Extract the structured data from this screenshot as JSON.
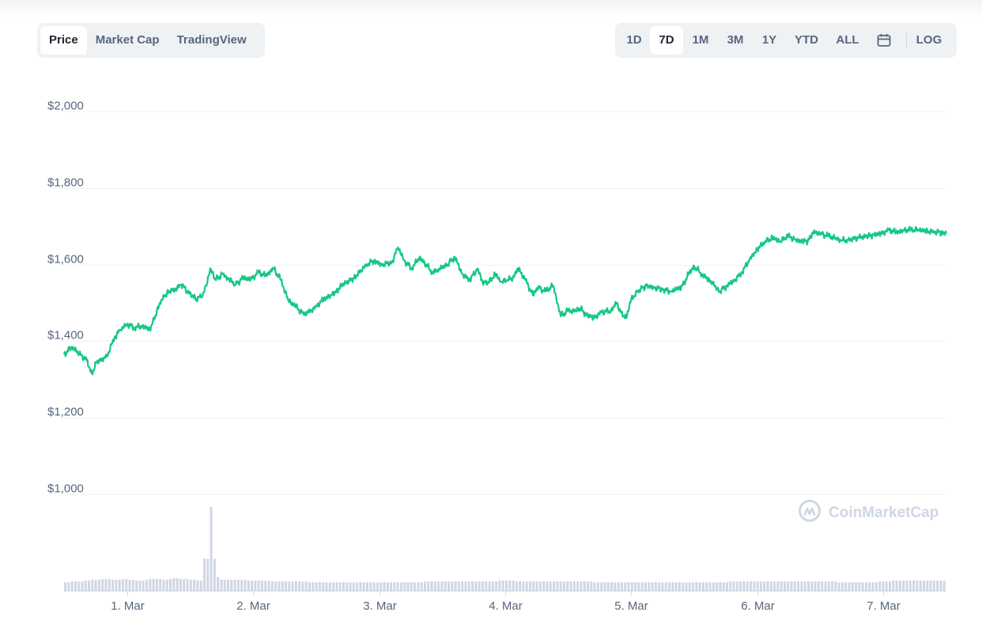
{
  "toolbar": {
    "left_tabs": [
      {
        "label": "Price",
        "active": true
      },
      {
        "label": "Market Cap",
        "active": false
      },
      {
        "label": "TradingView",
        "active": false
      }
    ],
    "right_tabs": [
      {
        "label": "1D",
        "active": false
      },
      {
        "label": "7D",
        "active": true
      },
      {
        "label": "1M",
        "active": false
      },
      {
        "label": "3M",
        "active": false
      },
      {
        "label": "1Y",
        "active": false
      },
      {
        "label": "YTD",
        "active": false
      },
      {
        "label": "ALL",
        "active": false
      }
    ],
    "calendar_icon": "calendar-icon",
    "log_label": "LOG"
  },
  "watermark": {
    "text": "CoinMarketCap",
    "icon": "coinmarketcap-logo-icon"
  },
  "colors": {
    "line": "#16c784",
    "grid": "#eff2f5",
    "volume": "#cfd6e4",
    "text": "#58667e"
  },
  "chart_data": {
    "type": "line",
    "y_ticks": [
      "$2,000",
      "$1,800",
      "$1,600",
      "$1,400",
      "$1,200",
      "$1,000"
    ],
    "y_tick_values": [
      2000,
      1800,
      1600,
      1400,
      1200,
      1000
    ],
    "ylim": [
      1000,
      2000
    ],
    "x_ticks": [
      "1. Mar",
      "2. Mar",
      "3. Mar",
      "4. Mar",
      "5. Mar",
      "6. Mar",
      "7. Mar"
    ],
    "x_tick_values": [
      0.5,
      1.5,
      2.5,
      3.5,
      4.5,
      5.5,
      6.5
    ],
    "xlim": [
      0,
      7
    ],
    "grid": true,
    "series": [
      {
        "x": [
          0,
          0.06,
          0.18,
          0.22,
          0.26,
          0.34,
          0.4,
          0.45,
          0.5,
          0.56,
          0.62,
          0.68,
          0.72,
          0.76,
          0.8,
          0.84,
          0.88,
          0.93,
          0.98,
          1.05,
          1.1,
          1.13,
          1.16,
          1.2,
          1.26,
          1.31,
          1.36,
          1.42,
          1.48,
          1.54,
          1.6,
          1.66,
          1.72,
          1.78,
          1.84,
          1.9,
          1.94,
          2.0,
          2.06,
          2.12,
          2.16,
          2.2,
          2.3,
          2.4,
          2.46,
          2.52,
          2.6,
          2.65,
          2.7,
          2.76,
          2.82,
          2.86,
          2.92,
          2.96,
          3.04,
          3.1,
          3.16,
          3.22,
          3.28,
          3.32,
          3.36,
          3.42,
          3.47,
          3.52,
          3.56,
          3.6,
          3.66,
          3.72,
          3.76,
          3.82,
          3.88,
          3.94,
          4.0,
          4.06,
          4.1,
          4.14,
          4.2,
          4.26,
          4.34,
          4.38,
          4.42,
          4.46,
          4.5,
          4.55,
          4.62,
          4.68,
          4.75,
          4.82,
          4.88,
          4.92,
          4.96,
          5.0,
          5.06,
          5.12,
          5.2,
          5.26,
          5.32,
          5.38,
          5.44,
          5.5,
          5.56,
          5.62,
          5.68,
          5.74,
          5.8,
          5.86,
          5.9,
          5.94,
          6.0,
          6.06,
          6.12,
          6.17,
          6.22,
          6.3,
          6.38,
          6.42,
          6.48,
          6.54,
          6.6,
          6.66,
          6.72,
          6.78,
          6.84,
          6.9,
          6.96,
          7.0
        ],
        "values": [
          1365,
          1385,
          1350,
          1315,
          1345,
          1360,
          1410,
          1430,
          1445,
          1435,
          1440,
          1432,
          1460,
          1500,
          1520,
          1530,
          1535,
          1548,
          1530,
          1510,
          1520,
          1545,
          1590,
          1560,
          1575,
          1560,
          1548,
          1565,
          1560,
          1580,
          1570,
          1590,
          1560,
          1505,
          1490,
          1470,
          1475,
          1490,
          1510,
          1520,
          1530,
          1545,
          1565,
          1600,
          1610,
          1600,
          1605,
          1645,
          1610,
          1590,
          1620,
          1605,
          1580,
          1585,
          1600,
          1620,
          1575,
          1560,
          1590,
          1555,
          1550,
          1575,
          1555,
          1560,
          1565,
          1590,
          1560,
          1520,
          1540,
          1530,
          1545,
          1465,
          1480,
          1478,
          1485,
          1470,
          1460,
          1475,
          1480,
          1500,
          1475,
          1460,
          1510,
          1530,
          1545,
          1540,
          1535,
          1530,
          1540,
          1550,
          1580,
          1595,
          1575,
          1560,
          1530,
          1545,
          1560,
          1580,
          1615,
          1640,
          1660,
          1670,
          1660,
          1675,
          1665,
          1660,
          1660,
          1685,
          1680,
          1675,
          1668,
          1662,
          1665,
          1670,
          1675,
          1678,
          1680,
          1690,
          1685,
          1688,
          1692,
          1690,
          1688,
          1685,
          1684,
          1682
        ]
      }
    ],
    "volume_note": "relative volume bars",
    "volume": [
      0.1,
      0.1,
      0.11,
      0.11,
      0.11,
      0.11,
      0.12,
      0.12,
      0.13,
      0.13,
      0.13,
      0.14,
      0.14,
      0.14,
      0.13,
      0.13,
      0.13,
      0.14,
      0.14,
      0.13,
      0.13,
      0.12,
      0.12,
      0.12,
      0.13,
      0.14,
      0.14,
      0.14,
      0.14,
      0.13,
      0.13,
      0.14,
      0.15,
      0.15,
      0.14,
      0.14,
      0.14,
      0.13,
      0.13,
      0.12,
      0.12,
      0.38,
      0.38,
      1.0,
      0.38,
      0.16,
      0.13,
      0.13,
      0.13,
      0.13,
      0.13,
      0.13,
      0.13,
      0.13,
      0.12,
      0.12,
      0.12,
      0.12,
      0.12,
      0.12,
      0.12,
      0.11,
      0.11,
      0.11,
      0.11,
      0.11,
      0.11,
      0.11,
      0.11,
      0.11,
      0.11,
      0.11,
      0.1,
      0.1,
      0.1,
      0.1,
      0.1,
      0.1,
      0.1,
      0.1,
      0.1,
      0.1,
      0.1,
      0.1,
      0.1,
      0.1,
      0.1,
      0.1,
      0.1,
      0.1,
      0.1,
      0.1,
      0.1,
      0.1,
      0.1,
      0.1,
      0.1,
      0.1,
      0.1,
      0.1,
      0.1,
      0.1,
      0.1,
      0.1,
      0.1,
      0.1,
      0.11,
      0.11,
      0.11,
      0.11,
      0.11,
      0.11,
      0.11,
      0.11,
      0.11,
      0.11,
      0.11,
      0.11,
      0.11,
      0.11,
      0.11,
      0.11,
      0.11,
      0.11,
      0.11,
      0.11,
      0.11,
      0.11,
      0.12,
      0.12,
      0.12,
      0.12,
      0.12,
      0.11,
      0.11,
      0.11,
      0.11,
      0.11,
      0.11,
      0.11,
      0.11,
      0.11,
      0.11,
      0.11,
      0.11,
      0.11,
      0.11,
      0.11,
      0.11,
      0.11,
      0.11,
      0.11,
      0.11,
      0.11,
      0.11,
      0.11,
      0.1,
      0.1,
      0.1,
      0.1,
      0.1,
      0.1,
      0.1,
      0.1,
      0.1,
      0.1,
      0.1,
      0.1,
      0.1,
      0.1,
      0.1,
      0.1,
      0.1,
      0.1,
      0.1,
      0.1,
      0.1,
      0.1,
      0.1,
      0.1,
      0.1,
      0.1,
      0.1,
      0.1,
      0.1,
      0.1,
      0.1,
      0.1,
      0.1,
      0.1,
      0.1,
      0.1,
      0.1,
      0.1,
      0.1,
      0.1,
      0.11,
      0.11,
      0.11,
      0.11,
      0.11,
      0.11,
      0.11,
      0.11,
      0.11,
      0.11,
      0.11,
      0.11,
      0.11,
      0.11,
      0.11,
      0.11,
      0.11,
      0.11,
      0.11,
      0.11,
      0.11,
      0.11,
      0.11,
      0.11,
      0.11,
      0.11,
      0.11,
      0.11,
      0.11,
      0.11,
      0.11,
      0.11,
      0.1,
      0.1,
      0.1,
      0.1,
      0.1,
      0.1,
      0.1,
      0.1,
      0.1,
      0.1,
      0.1,
      0.1,
      0.11,
      0.11,
      0.11,
      0.11,
      0.12,
      0.12,
      0.12,
      0.12,
      0.12,
      0.12,
      0.12,
      0.12,
      0.12,
      0.12,
      0.12,
      0.12,
      0.12,
      0.12,
      0.12,
      0.12
    ]
  }
}
